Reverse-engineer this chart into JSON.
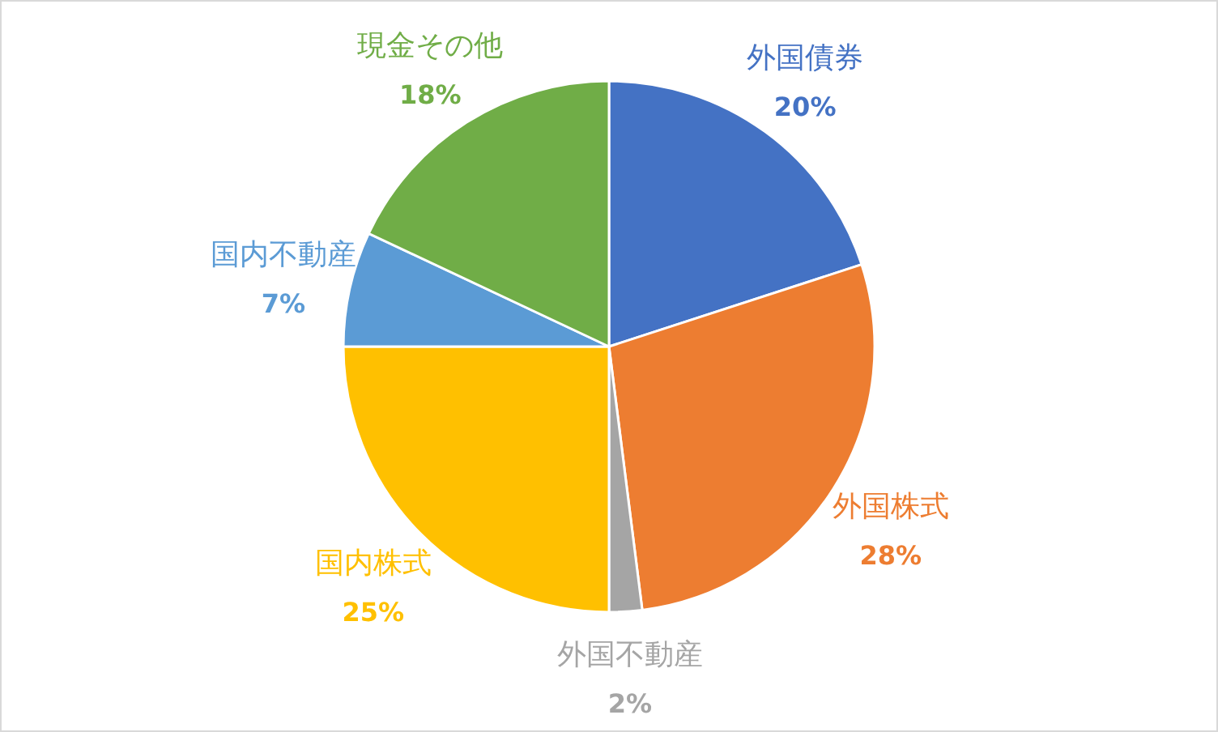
{
  "chart_data": {
    "type": "pie",
    "categories": [
      "外国債券",
      "外国株式",
      "外国不動産",
      "国内株式",
      "国内不動産",
      "現金その他"
    ],
    "values": [
      20,
      28,
      2,
      25,
      7,
      18
    ],
    "colors": [
      "#4472c4",
      "#ed7d31",
      "#a5a5a5",
      "#ffc000",
      "#5b9bd5",
      "#70ad47"
    ],
    "value_labels": [
      "20%",
      "28%",
      "2%",
      "25%",
      "7%",
      "18%"
    ],
    "legend": false
  }
}
